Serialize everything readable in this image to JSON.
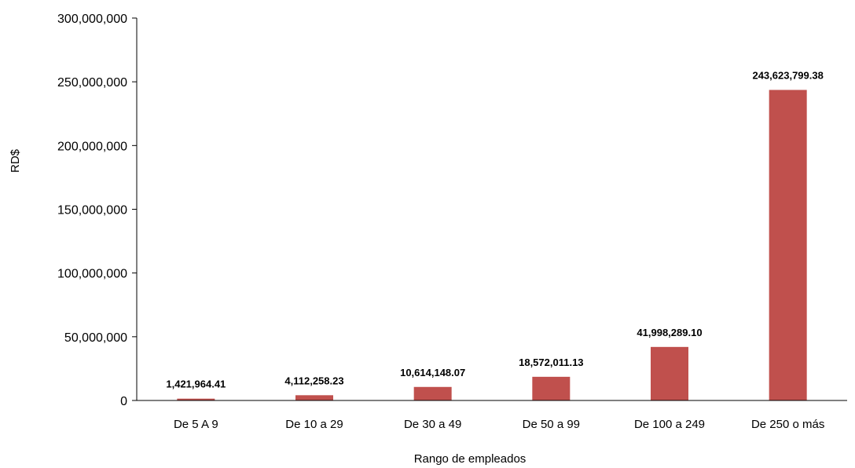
{
  "chart_data": {
    "type": "bar",
    "title": "",
    "xlabel": "Rango de empleados",
    "ylabel": "RD$",
    "ylim": [
      0,
      300000000
    ],
    "y_ticks": [
      0,
      50000000,
      100000000,
      150000000,
      200000000,
      250000000,
      300000000
    ],
    "y_tick_labels": [
      "0",
      "50,000,000",
      "100,000,000",
      "150,000,000",
      "200,000,000",
      "250,000,000",
      "300,000,000"
    ],
    "categories": [
      "De 5 A 9",
      "De 10 a 29",
      "De 30 a 49",
      "De 50 a 99",
      "De 100 a 249",
      "De 250 o más"
    ],
    "values": [
      1421964.41,
      4112258.23,
      10614148.07,
      18572011.13,
      41998289.1,
      243623799.38
    ],
    "data_labels": [
      "1,421,964.41",
      "4,112,258.23",
      "10,614,148.07",
      "18,572,011.13",
      "41,998,289.10",
      "243,623,799.38"
    ],
    "bar_color": "#c0504d",
    "grid": false,
    "legend": "none"
  }
}
